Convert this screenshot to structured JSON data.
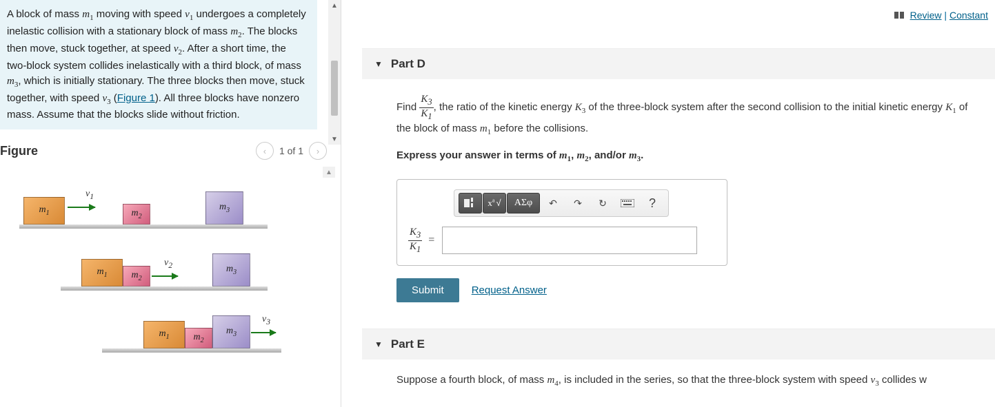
{
  "problem": {
    "text_html": "A block of mass <span class='math'>m<sub>1</sub></span> moving with speed <span class='math'>v<sub>1</sub></span> undergoes a completely inelastic collision with a stationary block of mass <span class='math'>m<sub>2</sub></span>. The blocks then move, stuck together, at speed <span class='math'>v<sub>2</sub></span>. After a short time, the two-block system collides inelastically with a third block, of mass <span class='math'>m<sub>3</sub></span>, which is initially stationary. The three blocks then move, stuck together, with speed <span class='math'>v<sub>3</sub></span> (<a class='link' href='#'>Figure 1</a>). All three blocks have nonzero mass. Assume that the blocks slide without friction."
  },
  "figure": {
    "title": "Figure",
    "counter": "1 of 1",
    "labels": {
      "m1": "m",
      "m2": "m",
      "m3": "m",
      "v1": "v",
      "v2": "v",
      "v3": "v"
    },
    "colors": {
      "m1": [
        "#f5b56b",
        "#d98a36"
      ],
      "m2": [
        "#f7a9b9",
        "#d15d7d"
      ],
      "m3": [
        "#d6cfe8",
        "#9b8dc8"
      ],
      "arrow": "#1a7a1a",
      "ground": [
        "#ddd",
        "#aaa"
      ]
    }
  },
  "topLinks": {
    "review": "Review",
    "constant": "Constant"
  },
  "partD": {
    "title": "Part D",
    "prompt_html": "Find <span class='frac'><span class='num'>K<sub>3</sub></span><span class='den'>K<sub>1</sub></span></span>, the ratio of the kinetic energy <span class='math'>K<sub>3</sub></span> of the three-block system after the second collision to the initial kinetic energy <span class='math'>K<sub>1</sub></span> of the block of mass <span class='math'>m<sub>1</sub></span> before the collisions.",
    "instruction_html": "Express your answer in terms of <span class='math'>m<sub>1</sub></span>, <span class='math'>m<sub>2</sub></span>, and/or <span class='math'>m<sub>3</sub></span>.",
    "lhs_num": "K",
    "lhs_num_sub": "3",
    "lhs_den": "K",
    "lhs_den_sub": "1",
    "equals": "=",
    "toolbar": {
      "template": "■",
      "sqrt": "√",
      "frac_icon": "x/y",
      "greek": "ΑΣφ",
      "undo": "↶",
      "redo": "↷",
      "reset": "↻",
      "keyboard": "⌨",
      "help": "?"
    },
    "submit": "Submit",
    "request": "Request Answer"
  },
  "partE": {
    "title": "Part E",
    "body_html": "Suppose a fourth block, of mass <span class='math'>m<sub>4</sub></span>, is included in the series, so that the three-block system with speed <span class='math'>v<sub>3</sub></span> collides w"
  }
}
